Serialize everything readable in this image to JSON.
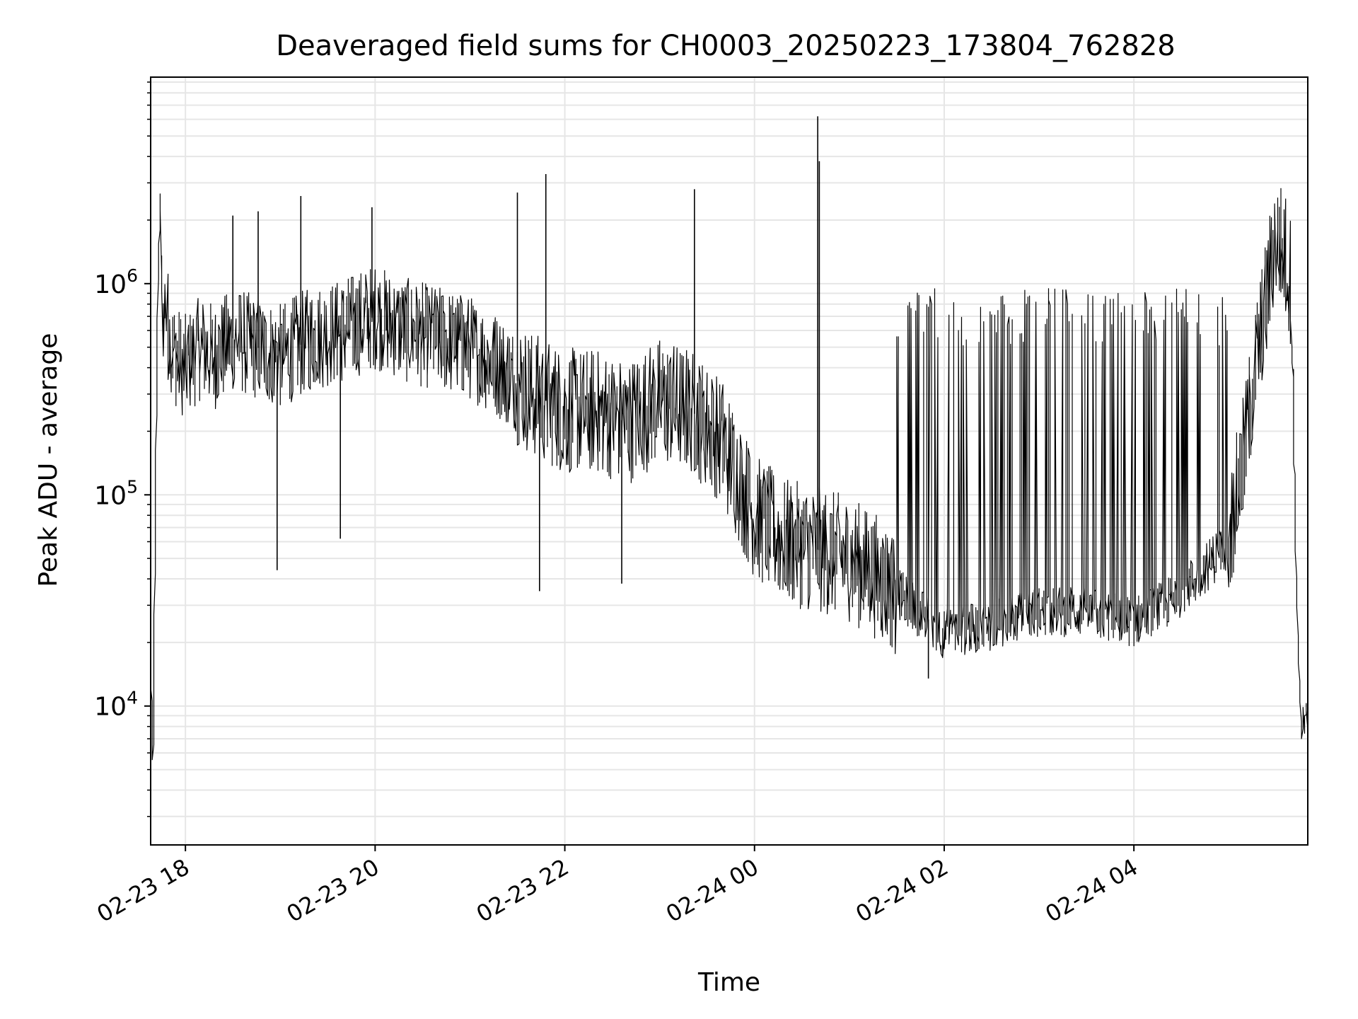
{
  "chart_data": {
    "type": "line",
    "title": "Deaveraged field sums for CH0003_20250223_173804_762828",
    "xlabel": "Time",
    "ylabel": "Peak ADU - average",
    "yscale": "log",
    "xlim": [
      "2025-02-23 17:38",
      "2025-02-24 05:50"
    ],
    "ylim": [
      2200,
      9500000
    ],
    "x_ticks": [
      "2025-02-23 18:00",
      "2025-02-23 20:00",
      "2025-02-23 22:00",
      "2025-02-24 00:00",
      "2025-02-24 02:00",
      "2025-02-24 04:00"
    ],
    "x_tick_labels": [
      "02-23 18",
      "02-23 20",
      "02-23 22",
      "02-24 00",
      "02-24 02",
      "02-24 04"
    ],
    "y_ticks": [
      {
        "value": 10000,
        "base": "10",
        "exp": "4"
      },
      {
        "value": 100000,
        "base": "10",
        "exp": "5"
      },
      {
        "value": 1000000,
        "base": "10",
        "exp": "6"
      }
    ],
    "grid": true,
    "legend": "none",
    "series": [
      {
        "color": "#000000",
        "x": [
          "2025-02-23 17:38",
          "2025-02-23 17:39",
          "2025-02-23 17:40",
          "2025-02-23 17:41",
          "2025-02-23 17:42",
          "2025-02-23 17:43",
          "2025-02-23 17:44",
          "2025-02-23 17:45",
          "2025-02-23 17:46",
          "2025-02-23 17:48",
          "2025-02-23 17:50",
          "2025-02-23 17:52",
          "2025-02-23 17:55",
          "2025-02-23 18:00",
          "2025-02-23 18:10",
          "2025-02-23 18:20",
          "2025-02-23 18:30",
          "2025-02-23 18:45",
          "2025-02-23 19:00",
          "2025-02-23 19:20",
          "2025-02-23 19:40",
          "2025-02-23 20:00",
          "2025-02-23 20:20",
          "2025-02-23 20:40",
          "2025-02-23 21:00",
          "2025-02-23 21:20",
          "2025-02-23 21:40",
          "2025-02-23 22:00",
          "2025-02-23 22:20",
          "2025-02-23 22:40",
          "2025-02-23 23:00",
          "2025-02-23 23:20",
          "2025-02-23 23:40",
          "2025-02-24 00:00",
          "2025-02-24 00:20",
          "2025-02-24 00:40",
          "2025-02-24 01:00",
          "2025-02-24 01:20",
          "2025-02-24 01:40",
          "2025-02-24 02:00",
          "2025-02-24 02:30",
          "2025-02-24 03:00",
          "2025-02-24 03:30",
          "2025-02-24 04:00",
          "2025-02-24 04:20",
          "2025-02-24 04:40",
          "2025-02-24 05:00",
          "2025-02-24 05:10",
          "2025-02-24 05:15",
          "2025-02-24 05:20",
          "2025-02-24 05:25",
          "2025-02-24 05:30",
          "2025-02-24 05:35",
          "2025-02-24 05:40",
          "2025-02-24 05:43",
          "2025-02-24 05:46",
          "2025-02-24 05:50"
        ],
        "y": [
          8000,
          11000,
          5500,
          40000,
          150000,
          900000,
          2000000,
          1400000,
          700000,
          800000,
          600000,
          500000,
          450000,
          400000,
          500000,
          450000,
          550000,
          500000,
          450000,
          550000,
          600000,
          700000,
          600000,
          550000,
          500000,
          400000,
          300000,
          250000,
          250000,
          220000,
          280000,
          250000,
          180000,
          80000,
          60000,
          55000,
          50000,
          40000,
          30000,
          22000,
          24000,
          28000,
          28000,
          25000,
          30000,
          40000,
          60000,
          150000,
          300000,
          550000,
          900000,
          1600000,
          1500000,
          1000000,
          50000,
          8000,
          9000
        ]
      }
    ],
    "spikes": [
      {
        "x": "2025-02-23 18:30",
        "y": 2100000
      },
      {
        "x": "2025-02-23 18:46",
        "y": 2200000
      },
      {
        "x": "2025-02-23 18:58",
        "y": 44000
      },
      {
        "x": "2025-02-23 19:13",
        "y": 2600000
      },
      {
        "x": "2025-02-23 19:38",
        "y": 62000
      },
      {
        "x": "2025-02-23 19:58",
        "y": 2300000
      },
      {
        "x": "2025-02-23 21:30",
        "y": 2700000
      },
      {
        "x": "2025-02-23 21:44",
        "y": 35000
      },
      {
        "x": "2025-02-23 21:48",
        "y": 3300000
      },
      {
        "x": "2025-02-23 22:36",
        "y": 38000
      },
      {
        "x": "2025-02-23 23:22",
        "y": 2800000
      },
      {
        "x": "2025-02-24 00:40",
        "y": 6200000
      },
      {
        "x": "2025-02-24 00:41",
        "y": 3800000
      },
      {
        "x": "2025-02-24 01:50",
        "y": 13500
      }
    ]
  }
}
